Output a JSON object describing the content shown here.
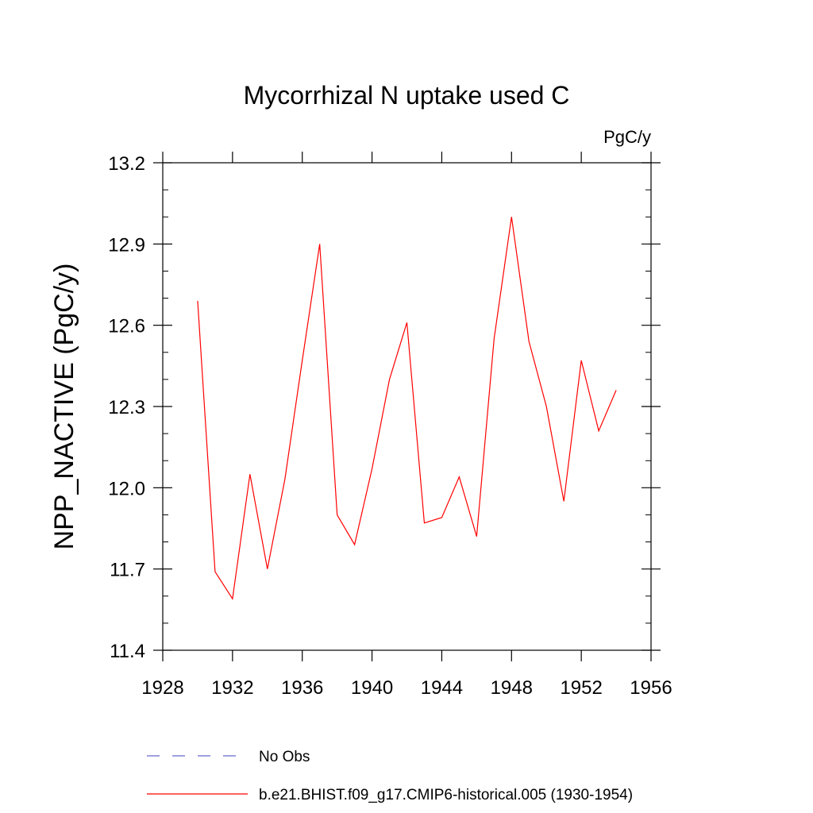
{
  "chart_data": {
    "type": "line",
    "title": "Mycorrhizal N uptake used C",
    "units": "PgC/y",
    "ylabel": "NPP_NACTIVE  (PgC/y)",
    "xlabel": "",
    "xlim": [
      1928,
      1956
    ],
    "ylim": [
      11.4,
      13.2
    ],
    "x_ticks": [
      "1928",
      "1932",
      "1936",
      "1940",
      "1944",
      "1948",
      "1952",
      "1956"
    ],
    "y_ticks": [
      "11.4",
      "11.7",
      "12.0",
      "12.3",
      "12.6",
      "12.9",
      "13.2"
    ],
    "series": [
      {
        "name": "b.e21.BHIST.f09_g17.CMIP6-historical.005 (1930-1954)",
        "color": "#ff0000",
        "style": "solid",
        "x": [
          1930,
          1931,
          1932,
          1933,
          1934,
          1935,
          1936,
          1937,
          1938,
          1939,
          1940,
          1941,
          1942,
          1943,
          1944,
          1945,
          1946,
          1947,
          1948,
          1949,
          1950,
          1951,
          1952,
          1953,
          1954
        ],
        "y": [
          12.69,
          11.69,
          11.59,
          12.05,
          11.7,
          12.03,
          12.47,
          12.9,
          11.9,
          11.79,
          12.07,
          12.4,
          12.61,
          11.87,
          11.89,
          12.04,
          11.82,
          12.55,
          13.0,
          12.54,
          12.3,
          11.95,
          12.47,
          12.21,
          12.36
        ]
      }
    ],
    "legend": [
      {
        "label": "No Obs",
        "color": "#6666cc",
        "style": "dashed"
      },
      {
        "label": "b.e21.BHIST.f09_g17.CMIP6-historical.005 (1930-1954)",
        "color": "#ff0000",
        "style": "solid"
      }
    ]
  }
}
